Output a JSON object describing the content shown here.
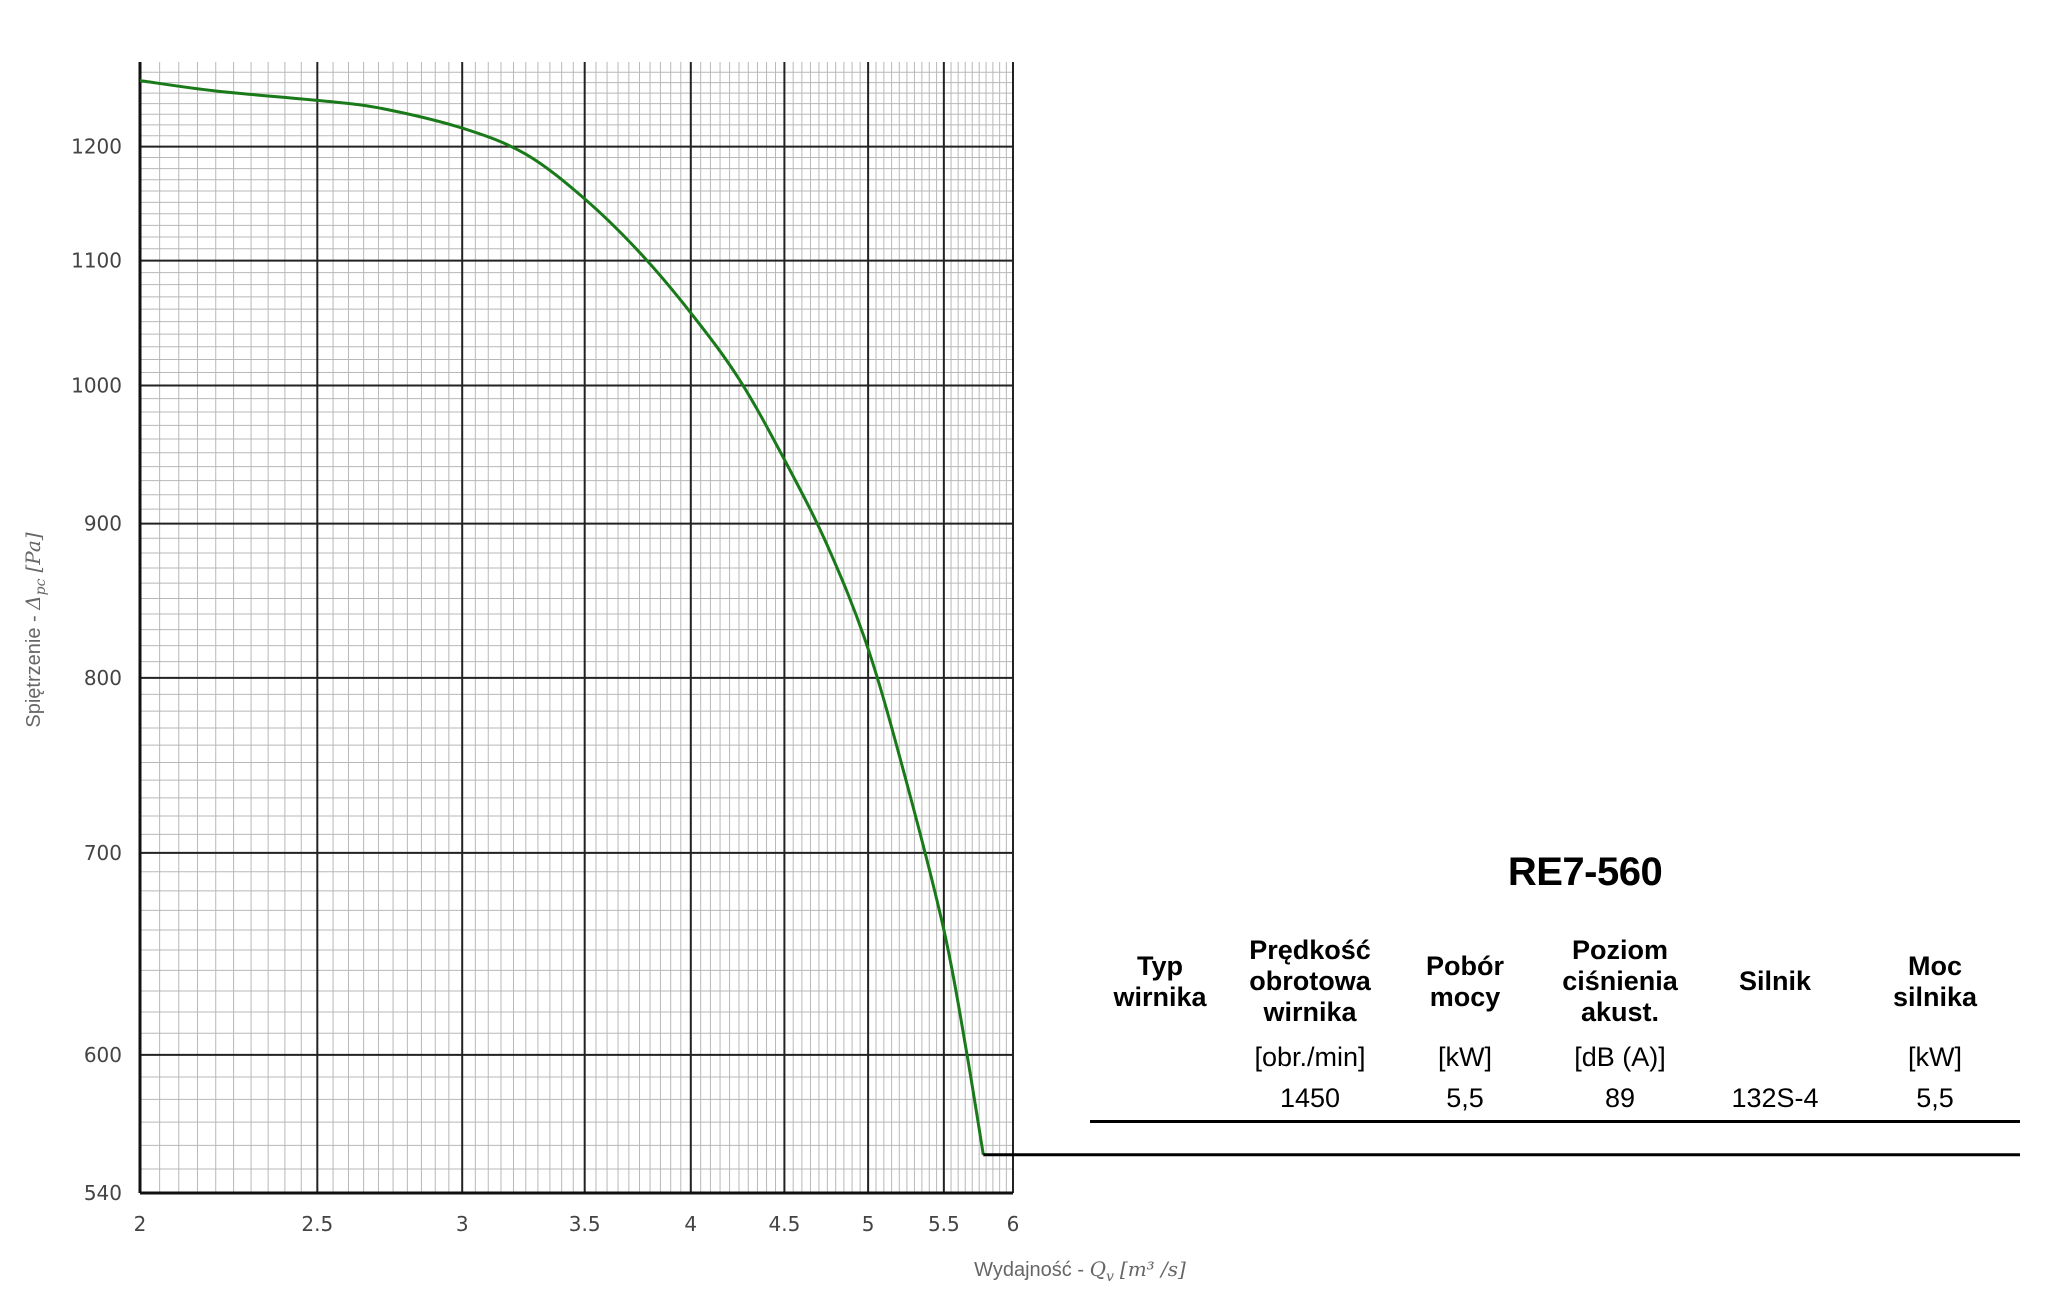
{
  "chart_data": {
    "type": "line",
    "title": "",
    "xlabel": {
      "text": "Wydajność - ",
      "symbol": "Q",
      "sub": "v",
      "unit": "[m³ /s]"
    },
    "ylabel": {
      "text": "Spiętrzenie - ",
      "symbol": "Δ",
      "sub": "pc",
      "unit": "[Pa]"
    },
    "x_scale": "log",
    "y_scale": "log",
    "xlim": [
      2,
      6
    ],
    "ylim": [
      540,
      1280
    ],
    "x_ticks": [
      2,
      2.5,
      3,
      3.5,
      4,
      4.5,
      5,
      5.5,
      6
    ],
    "x_tick_labels": [
      "2",
      "2.5",
      "3",
      "3.5",
      "4",
      "4.5",
      "5",
      "5.5",
      "6"
    ],
    "y_ticks": [
      540,
      600,
      700,
      800,
      900,
      1000,
      1100,
      1200
    ],
    "y_tick_labels": [
      "540",
      "600",
      "700",
      "800",
      "900",
      "1000",
      "1100",
      "1200"
    ],
    "grid": true,
    "series": [
      {
        "color": "#1a7a1a",
        "x": [
          2.0,
          2.2,
          2.5,
          2.7,
          3.0,
          3.25,
          3.5,
          3.75,
          4.0,
          4.25,
          4.5,
          4.75,
          5.0,
          5.25,
          5.5,
          5.65,
          5.78
        ],
        "y": [
          1262,
          1252,
          1243,
          1236,
          1217,
          1193,
          1153,
          1107,
          1057,
          1005,
          945,
          885,
          818,
          738,
          660,
          605,
          556
        ]
      }
    ],
    "leader_line_y": 556
  },
  "spec": {
    "title": "RE7-560",
    "headers": [
      [
        "Typ",
        "wirnika"
      ],
      [
        "Prędkość",
        "obrotowa",
        "wirnika"
      ],
      [
        "Pobór",
        "mocy"
      ],
      [
        "Poziom",
        "ciśnienia",
        "akust."
      ],
      [
        "Silnik"
      ],
      [
        "Moc",
        "silnika"
      ]
    ],
    "units": [
      "",
      "[obr./min]",
      "[kW]",
      "[dB (A)]",
      "",
      "[kW]"
    ],
    "values": [
      "",
      "1450",
      "5,5",
      "89",
      "132S-4",
      "5,5"
    ]
  }
}
